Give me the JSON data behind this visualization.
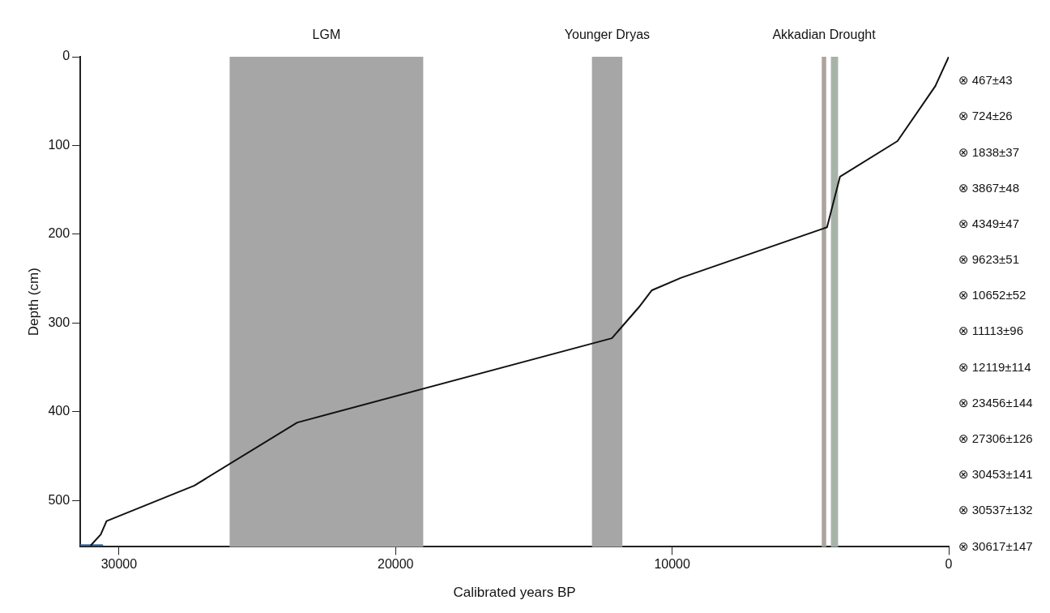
{
  "chart_data": {
    "type": "line",
    "xlabel": "Calibrated years BP",
    "ylabel": "Depth (cm)",
    "xlim": [
      31400,
      0
    ],
    "xticks": [
      30000,
      20000,
      10000,
      0
    ],
    "ylim": [
      552,
      0
    ],
    "yticks": [
      0,
      100,
      200,
      300,
      400,
      500
    ],
    "grid": false,
    "legend": false,
    "marker": "none",
    "line_style": "solid",
    "series": [
      {
        "color": "#111111",
        "x": [
          0,
          484,
          1853,
          3930,
          4400,
          9680,
          10733,
          11200,
          12178,
          23557,
          27276,
          30450,
          30660,
          31010
        ],
        "values": [
          0,
          33,
          95,
          135,
          192,
          249,
          263,
          282,
          317,
          412,
          483,
          523,
          538,
          550
        ]
      },
      {
        "color": "#3a6ea5",
        "x": [
          31400,
          30600
        ],
        "values": [
          550,
          550
        ]
      }
    ],
    "bands": [
      {
        "axis": "x",
        "from": 26000,
        "to": 19000,
        "label": "LGM",
        "color": "#a6a6a6"
      },
      {
        "axis": "x",
        "from": 12900,
        "to": 11800,
        "label": "Younger Dryas",
        "color": "#a6a6a6"
      },
      {
        "axis": "x",
        "from": 4590,
        "to": 4430,
        "label": "Akkadian Drought",
        "color": "#aaa49c"
      },
      {
        "axis": "x",
        "from": 4260,
        "to": 4000,
        "color": "#a7b3a9"
      }
    ],
    "annotations": [
      "⊗ 467±43",
      "⊗ 724±26",
      "⊗ 1838±37",
      "⊗ 3867±48",
      "⊗ 4349±47",
      "⊗ 9623±51",
      "⊗ 10652±52",
      "⊗ 11113±96",
      "⊗ 12119±114",
      "⊗ 23456±144",
      "⊗ 27306±126",
      "⊗ 30453±141",
      "⊗ 30537±132",
      "⊗ 30617±147"
    ]
  }
}
